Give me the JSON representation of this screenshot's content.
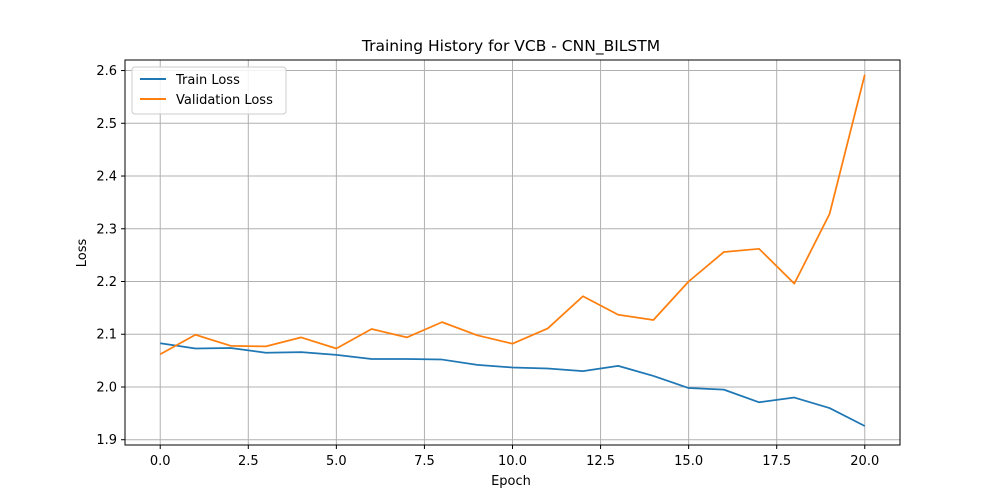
{
  "chart_data": {
    "type": "line",
    "title": "Training History for VCB - CNN_BILSTM",
    "xlabel": "Epoch",
    "ylabel": "Loss",
    "xlim": [
      -1,
      21
    ],
    "ylim": [
      1.89,
      2.62
    ],
    "xticks": [
      0,
      2.5,
      5,
      7.5,
      10,
      12.5,
      15,
      17.5,
      20
    ],
    "xtick_labels": [
      "0.0",
      "2.5",
      "5.0",
      "7.5",
      "10.0",
      "12.5",
      "15.0",
      "17.5",
      "20.0"
    ],
    "yticks": [
      1.9,
      2.0,
      2.1,
      2.2,
      2.3,
      2.4,
      2.5,
      2.6
    ],
    "ytick_labels": [
      "1.9",
      "2.0",
      "2.1",
      "2.2",
      "2.3",
      "2.4",
      "2.5",
      "2.6"
    ],
    "grid": true,
    "legend_position": "upper-left",
    "x": [
      0,
      1,
      2,
      3,
      4,
      5,
      6,
      7,
      8,
      9,
      10,
      11,
      12,
      13,
      14,
      15,
      16,
      17,
      18,
      19,
      20
    ],
    "series": [
      {
        "name": "Train Loss",
        "color": "#1f77b4",
        "values": [
          2.083,
          2.073,
          2.074,
          2.065,
          2.066,
          2.061,
          2.053,
          2.053,
          2.052,
          2.042,
          2.037,
          2.035,
          2.03,
          2.04,
          2.021,
          1.998,
          1.995,
          1.971,
          1.98,
          1.96,
          1.926
        ]
      },
      {
        "name": "Validation Loss",
        "color": "#ff7f0e",
        "values": [
          2.062,
          2.099,
          2.078,
          2.077,
          2.094,
          2.073,
          2.11,
          2.094,
          2.123,
          2.098,
          2.082,
          2.111,
          2.172,
          2.137,
          2.127,
          2.2,
          2.256,
          2.262,
          2.196,
          2.328,
          2.592
        ]
      }
    ]
  }
}
